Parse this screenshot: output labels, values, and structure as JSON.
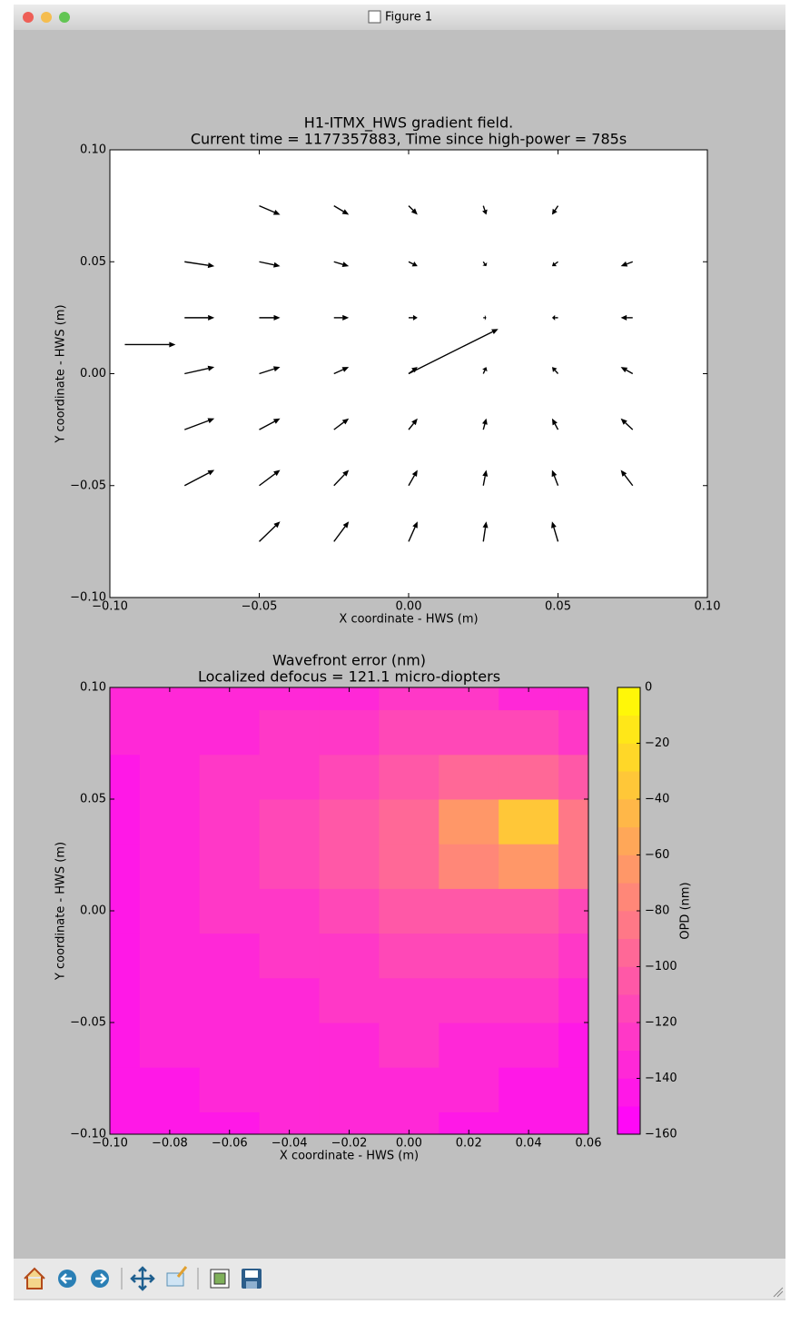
{
  "window": {
    "title": "Figure 1"
  },
  "chart_data": [
    {
      "type": "quiver",
      "title": "H1-ITMX_HWS gradient field.",
      "subtitle": "Current time = 1177357883, Time since high-power = 785s",
      "xlabel": "X coordinate - HWS (m)",
      "ylabel": "Y coordinate - HWS (m)",
      "color": "#000000",
      "xlim": [
        -0.1,
        0.1
      ],
      "ylim": [
        -0.1,
        0.1
      ],
      "xticks": [
        {
          "value": -0.1,
          "label": "−0.10"
        },
        {
          "value": -0.05,
          "label": "−0.05"
        },
        {
          "value": 0,
          "label": "0.00"
        },
        {
          "value": 0.05,
          "label": "0.05"
        },
        {
          "value": 0.1,
          "label": "0.10"
        }
      ],
      "yticks": [
        {
          "value": -0.1,
          "label": "−0.10"
        },
        {
          "value": -0.05,
          "label": "−0.05"
        },
        {
          "value": 0,
          "label": "0.00"
        },
        {
          "value": 0.05,
          "label": "0.05"
        },
        {
          "value": 0.1,
          "label": "0.10"
        }
      ],
      "x": [
        -0.05,
        -0.025,
        0,
        0.025,
        0.05,
        -0.075,
        -0.05,
        -0.025,
        0,
        0.025,
        0.05,
        0.075,
        -0.075,
        -0.05,
        -0.025,
        0,
        0.025,
        0.05,
        0.075,
        -0.075,
        -0.05,
        -0.025,
        0,
        0.025,
        0.05,
        0.075,
        -0.075,
        -0.05,
        -0.025,
        0,
        0.025,
        0.05,
        0.075,
        -0.075,
        -0.05,
        -0.025,
        0,
        0.025,
        0.05,
        0.075,
        -0.05,
        -0.025,
        0,
        0.025,
        0.05,
        -0.095,
        0
      ],
      "y": [
        0.075,
        0.075,
        0.075,
        0.075,
        0.075,
        0.05,
        0.05,
        0.05,
        0.05,
        0.05,
        0.05,
        0.05,
        0.025,
        0.025,
        0.025,
        0.025,
        0.025,
        0.025,
        0.025,
        0,
        0,
        0,
        0,
        0,
        0,
        0,
        -0.025,
        -0.025,
        -0.025,
        -0.025,
        -0.025,
        -0.025,
        -0.025,
        -0.05,
        -0.05,
        -0.05,
        -0.05,
        -0.05,
        -0.05,
        -0.05,
        -0.075,
        -0.075,
        -0.075,
        -0.075,
        -0.075,
        0.013,
        0
      ],
      "u": [
        0.007,
        0.005,
        0.003,
        0.001,
        -0.002,
        0.01,
        0.007,
        0.005,
        0.003,
        0.001,
        -0.002,
        -0.004,
        0.01,
        0.007,
        0.005,
        0.003,
        0.001,
        -0.002,
        -0.004,
        0.01,
        0.007,
        0.005,
        0.003,
        0.001,
        -0.002,
        -0.004,
        0.01,
        0.007,
        0.005,
        0.003,
        0.001,
        -0.002,
        -0.004,
        0.01,
        0.007,
        0.005,
        0.003,
        0.001,
        -0.002,
        -0.004,
        0.007,
        0.005,
        0.003,
        0.001,
        -0.002,
        0.017,
        0.03
      ],
      "v": [
        -0.004,
        -0.004,
        -0.004,
        -0.004,
        -0.004,
        -0.002,
        -0.002,
        -0.002,
        -0.002,
        -0.002,
        -0.002,
        -0.002,
        0,
        0,
        0,
        0,
        0,
        0,
        0,
        0.003,
        0.003,
        0.003,
        0.003,
        0.003,
        0.003,
        0.003,
        0.005,
        0.005,
        0.005,
        0.005,
        0.005,
        0.005,
        0.005,
        0.007,
        0.007,
        0.007,
        0.007,
        0.007,
        0.007,
        0.007,
        0.009,
        0.009,
        0.009,
        0.009,
        0.009,
        0,
        0.02
      ]
    },
    {
      "type": "contour",
      "title": "Wavefront error (nm)",
      "subtitle": "Localized defocus = 121.1 micro-diopters",
      "xlabel": "X coordinate - HWS (m)",
      "ylabel": "Y coordinate - HWS (m)",
      "colormap": "spring",
      "colorbar_label": "OPD (nm)",
      "xlim": [
        -0.1,
        0.06
      ],
      "ylim": [
        -0.1,
        0.1
      ],
      "xticks": [
        {
          "value": -0.1,
          "label": "−0.10"
        },
        {
          "value": -0.08,
          "label": "−0.08"
        },
        {
          "value": -0.06,
          "label": "−0.06"
        },
        {
          "value": -0.04,
          "label": "−0.04"
        },
        {
          "value": -0.02,
          "label": "−0.02"
        },
        {
          "value": 0,
          "label": "0.00"
        },
        {
          "value": 0.02,
          "label": "0.02"
        },
        {
          "value": 0.04,
          "label": "0.04"
        },
        {
          "value": 0.06,
          "label": "0.06"
        }
      ],
      "yticks": [
        {
          "value": -0.1,
          "label": "−0.10"
        },
        {
          "value": -0.05,
          "label": "−0.05"
        },
        {
          "value": 0,
          "label": "0.00"
        },
        {
          "value": 0.05,
          "label": "0.05"
        },
        {
          "value": 0.1,
          "label": "0.10"
        }
      ],
      "clim": [
        -160,
        0
      ],
      "cticks": [
        0,
        {
          "value": -20,
          "label": "−20"
        },
        {
          "value": -40,
          "label": "−40"
        },
        {
          "value": -60,
          "label": "−60"
        },
        {
          "value": -80,
          "label": "−80"
        },
        {
          "value": -100,
          "label": "−100"
        },
        {
          "value": -120,
          "label": "−120"
        },
        {
          "value": -140,
          "label": "−140"
        },
        {
          "value": -160,
          "label": "−160"
        }
      ],
      "levels": [
        -160,
        -150,
        -140,
        -130,
        -120,
        -110,
        -100,
        -90,
        -80,
        -70,
        -60,
        -50,
        -40,
        -30,
        -20,
        -10,
        0
      ],
      "x": [
        -0.1,
        -0.08,
        -0.06,
        -0.04,
        -0.02,
        0,
        0.02,
        0.04,
        0.06
      ],
      "y": [
        -0.1,
        -0.08,
        -0.06,
        -0.04,
        -0.02,
        0,
        0.02,
        0.04,
        0.06,
        0.08,
        0.1
      ],
      "z": [
        [
          -145,
          -145,
          -142,
          -140,
          -140,
          -140,
          -145,
          -150,
          -150
        ],
        [
          -145,
          -142,
          -140,
          -138,
          -135,
          -135,
          -140,
          -150,
          -150
        ],
        [
          -145,
          -140,
          -138,
          -135,
          -132,
          -130,
          -132,
          -140,
          -145
        ],
        [
          -145,
          -140,
          -135,
          -132,
          -128,
          -125,
          -125,
          -130,
          -135
        ],
        [
          -148,
          -140,
          -132,
          -128,
          -122,
          -118,
          -115,
          -118,
          -125
        ],
        [
          -150,
          -140,
          -130,
          -122,
          -115,
          -108,
          -102,
          -105,
          -115
        ],
        [
          -150,
          -138,
          -128,
          -118,
          -108,
          -95,
          -75,
          -65,
          -90
        ],
        [
          -148,
          -138,
          -128,
          -118,
          -108,
          -95,
          -70,
          -40,
          -85
        ],
        [
          -145,
          -138,
          -130,
          -122,
          -115,
          -105,
          -92,
          -95,
          -110
        ],
        [
          -140,
          -140,
          -135,
          -130,
          -125,
          -120,
          -118,
          -120,
          -128
        ],
        [
          -140,
          -140,
          -138,
          -135,
          -132,
          -130,
          -130,
          -132,
          -135
        ]
      ]
    }
  ]
}
